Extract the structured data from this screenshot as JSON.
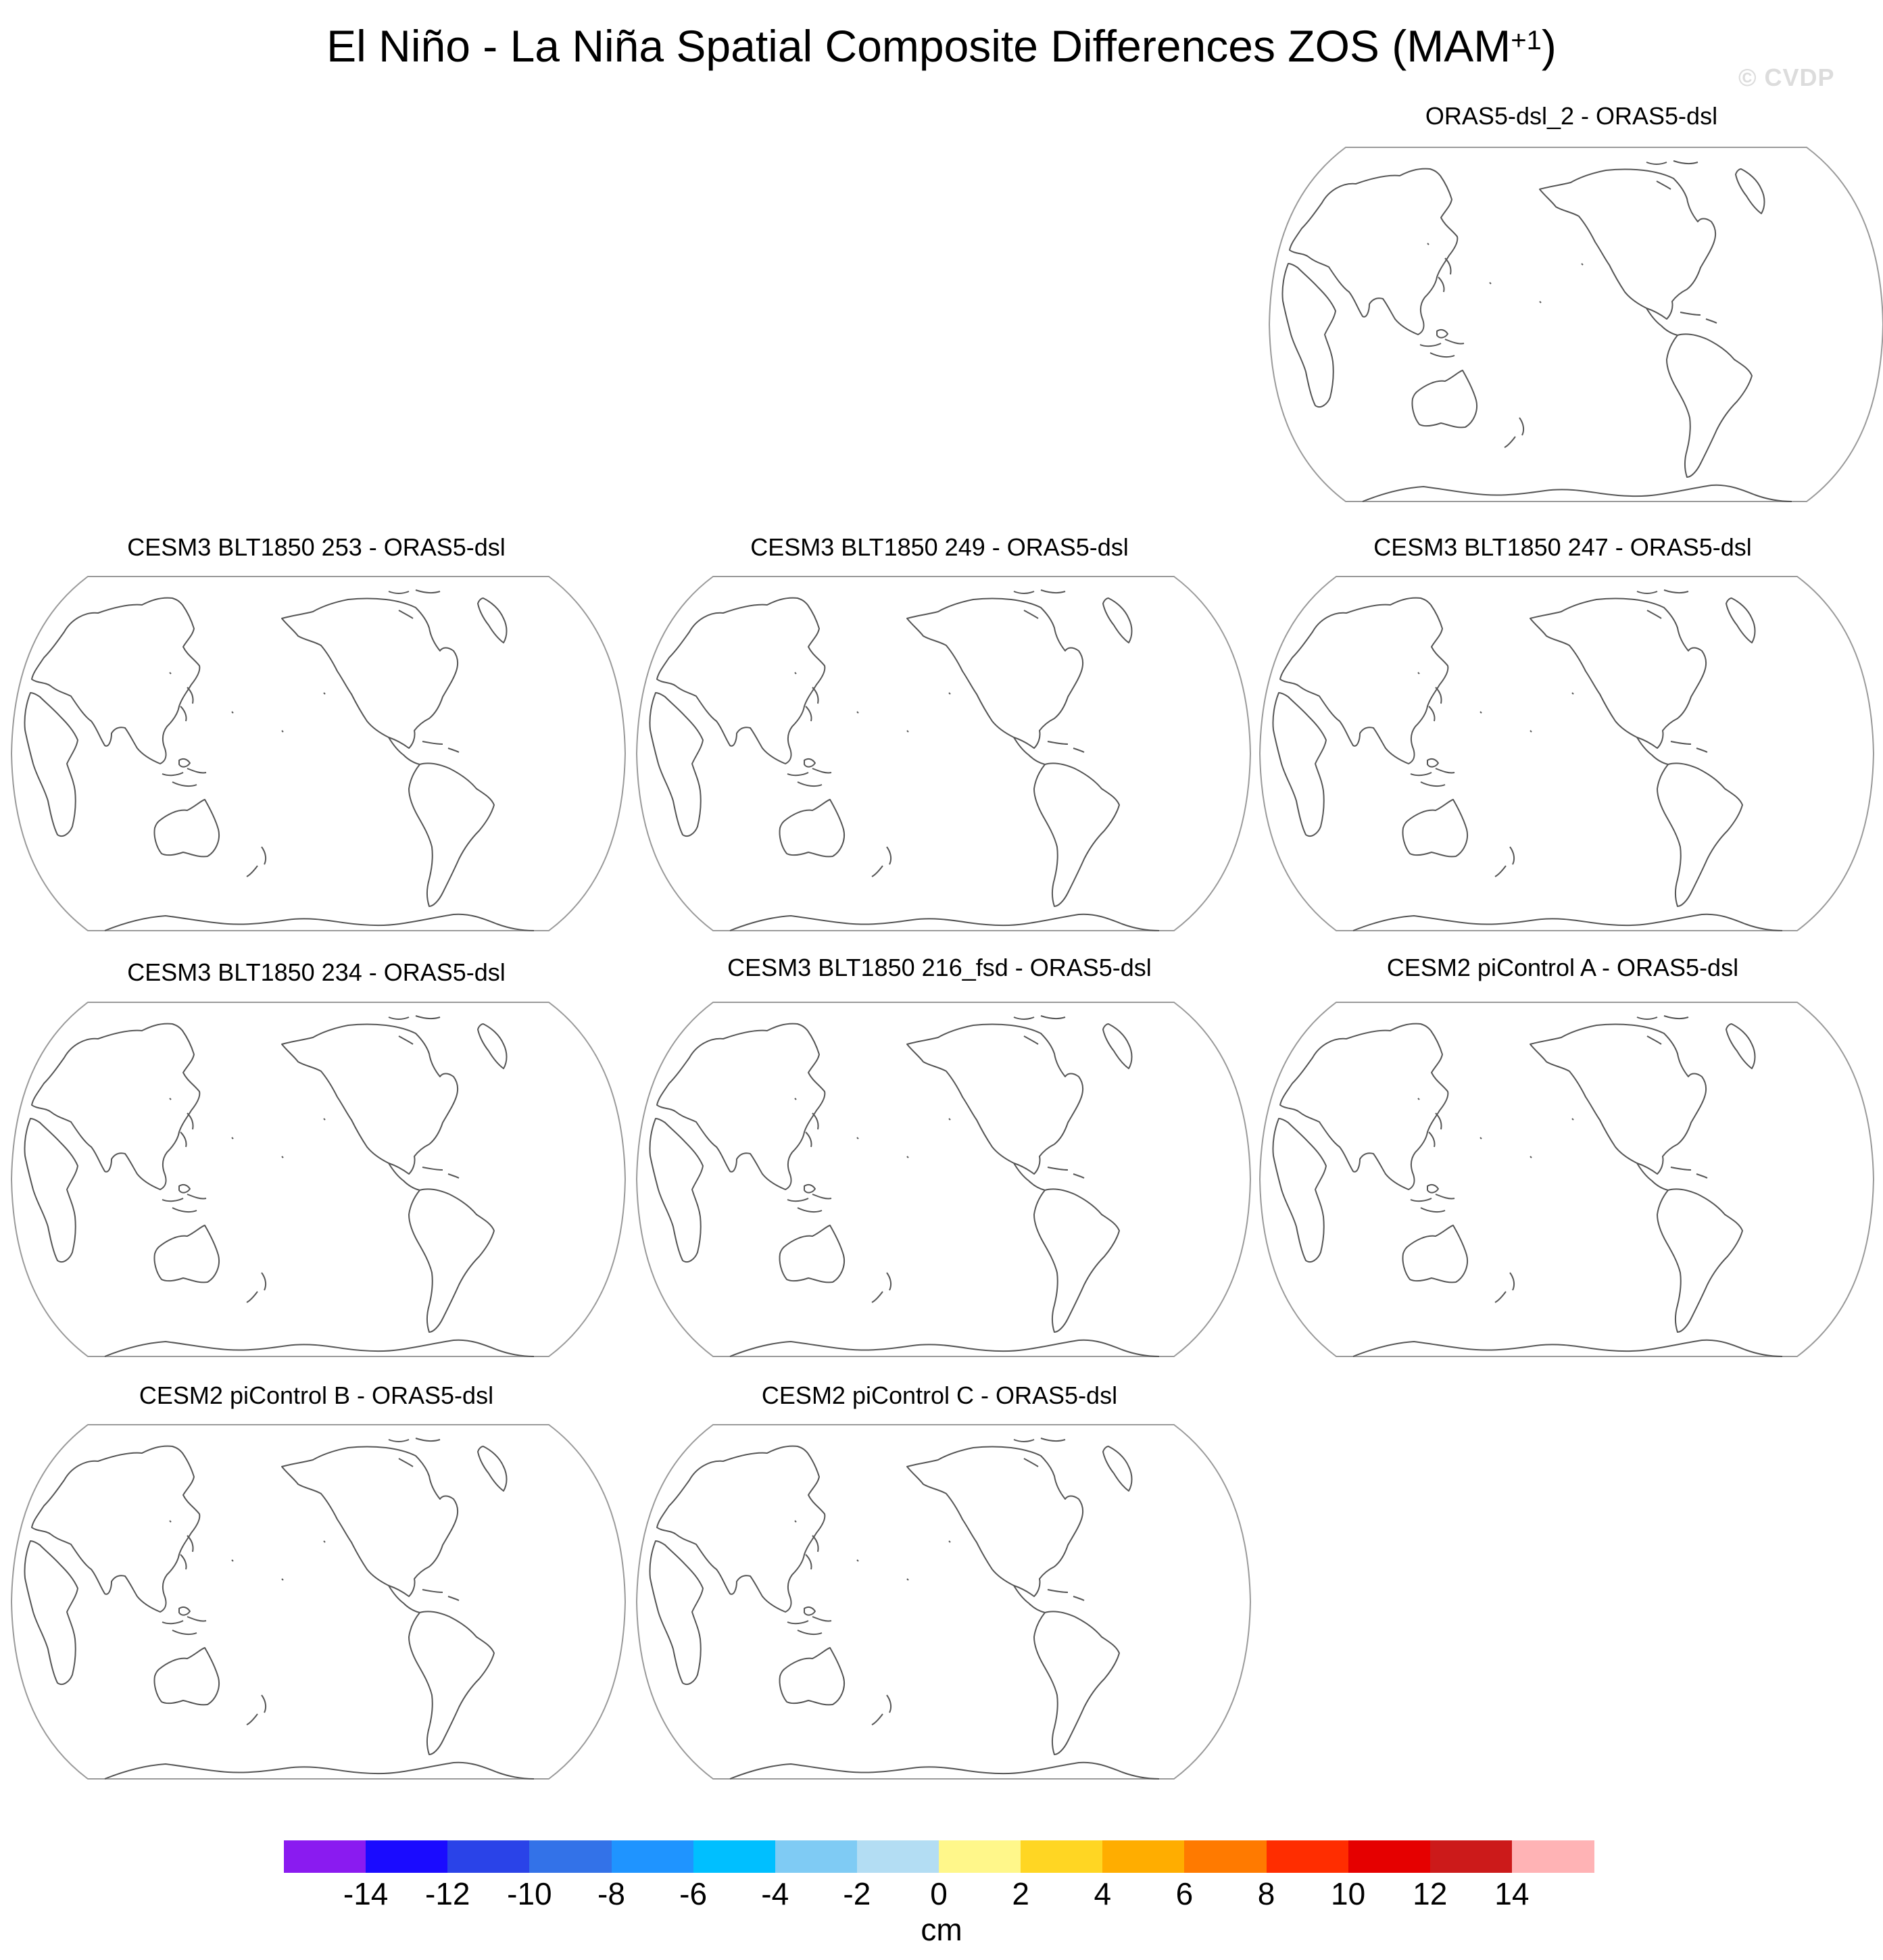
{
  "title": {
    "main": "El Niño - La Niña Spatial Composite Differences ZOS (MAM",
    "sup": "+1",
    "close": ")"
  },
  "watermark": "© CVDP",
  "panels": [
    {
      "title": "ORAS5-dsl_2 - ORAS5-dsl"
    },
    {
      "title": "CESM3 BLT1850 253 - ORAS5-dsl"
    },
    {
      "title": "CESM3 BLT1850 249 - ORAS5-dsl"
    },
    {
      "title": "CESM3 BLT1850 247 - ORAS5-dsl"
    },
    {
      "title": "CESM3 BLT1850 234 - ORAS5-dsl"
    },
    {
      "title": "CESM3 BLT1850 216_fsd - ORAS5-dsl"
    },
    {
      "title": "CESM2 piControl A - ORAS5-dsl"
    },
    {
      "title": "CESM2 piControl B - ORAS5-dsl"
    },
    {
      "title": "CESM2 piControl C - ORAS5-dsl"
    }
  ],
  "colorbar": {
    "colors": [
      "#8a1bf0",
      "#1a0bff",
      "#2a43e8",
      "#3372e8",
      "#1f94ff",
      "#00bfff",
      "#7fcbf4",
      "#b3ddf3",
      "#fff78a",
      "#ffd623",
      "#ffad00",
      "#ff7a00",
      "#ff2d00",
      "#e50000",
      "#cc1a1a",
      "#ffb3b5"
    ],
    "labels": [
      "-14",
      "-12",
      "-10",
      "-8",
      "-6",
      "-4",
      "-2",
      "0",
      "2",
      "4",
      "6",
      "8",
      "10",
      "12",
      "14"
    ],
    "units": "cm"
  }
}
